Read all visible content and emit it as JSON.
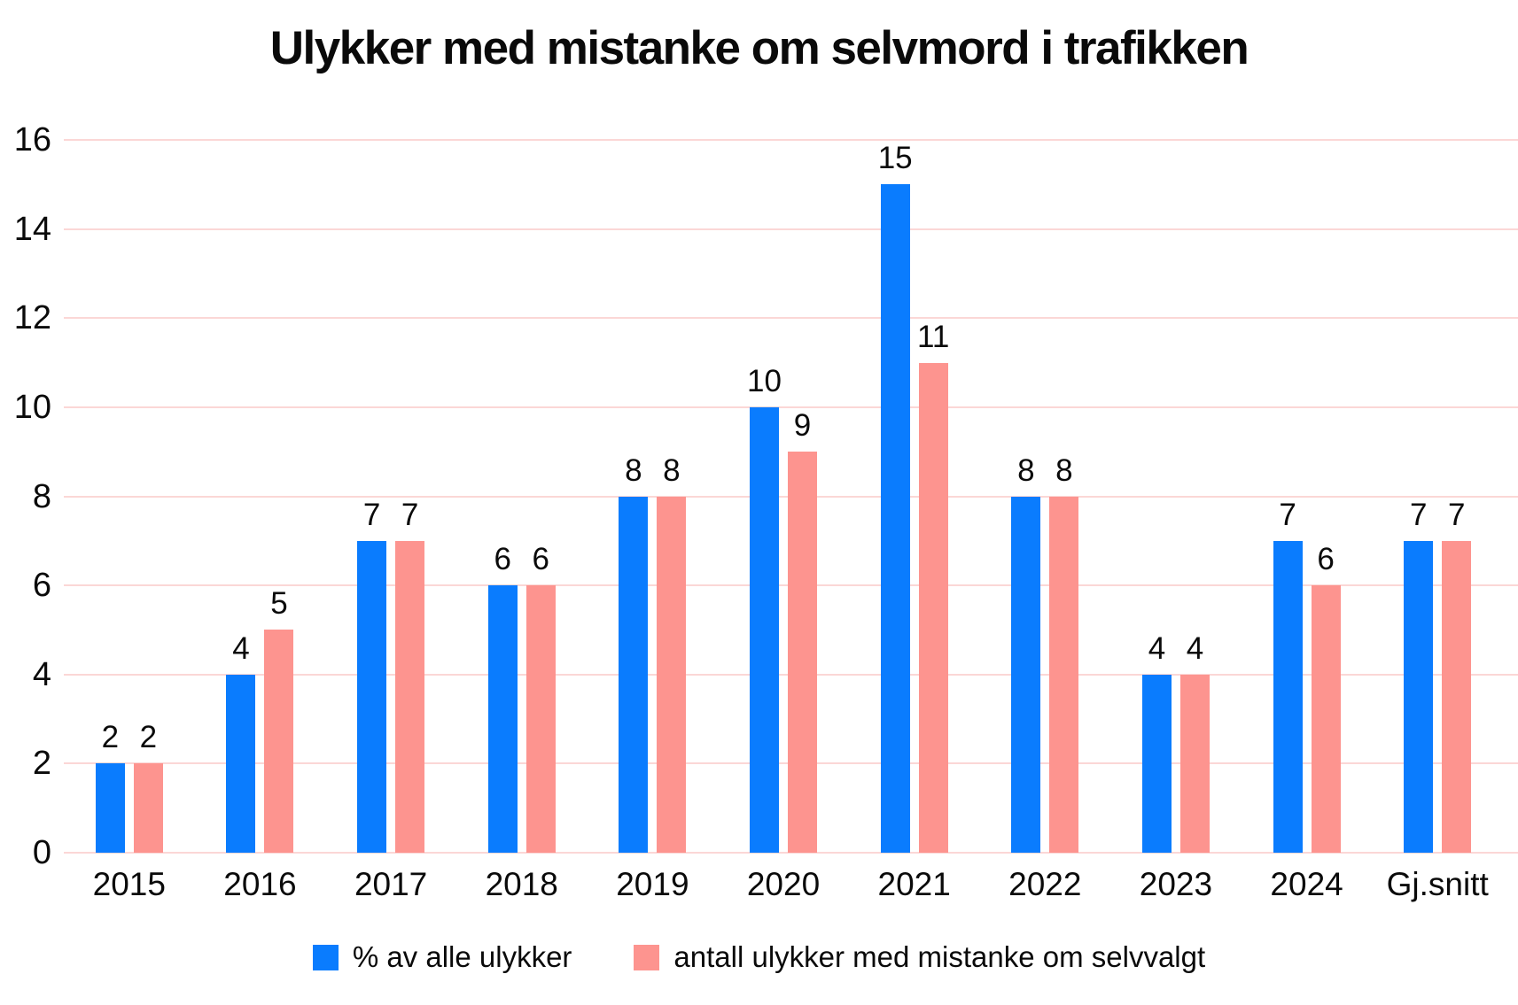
{
  "chart": {
    "title": "Ulykker med mistanke om selvmord i trafikken"
  },
  "chart_data": {
    "type": "bar",
    "title": "Ulykker med mistanke om selvmord i trafikken",
    "categories": [
      "2015",
      "2016",
      "2017",
      "2018",
      "2019",
      "2020",
      "2021",
      "2022",
      "2023",
      "2024",
      "Gj.snitt"
    ],
    "series": [
      {
        "name": "% av alle ulykker",
        "color": "#0a7cfe",
        "values": [
          2,
          4,
          7,
          6,
          8,
          10,
          15,
          8,
          4,
          7,
          7
        ]
      },
      {
        "name": "antall ulykker med mistanke om selvvalgt",
        "color": "#fd948f",
        "values": [
          2,
          5,
          7,
          6,
          8,
          9,
          11,
          8,
          4,
          6,
          7
        ]
      }
    ],
    "ylim": [
      0,
      16
    ],
    "ytick_step": 2,
    "yticks": [
      0,
      2,
      4,
      6,
      8,
      10,
      12,
      14,
      16
    ],
    "grid": "horizontal",
    "gridline_color": "#fbd7d6",
    "value_labels": true,
    "legend_position": "bottom"
  }
}
